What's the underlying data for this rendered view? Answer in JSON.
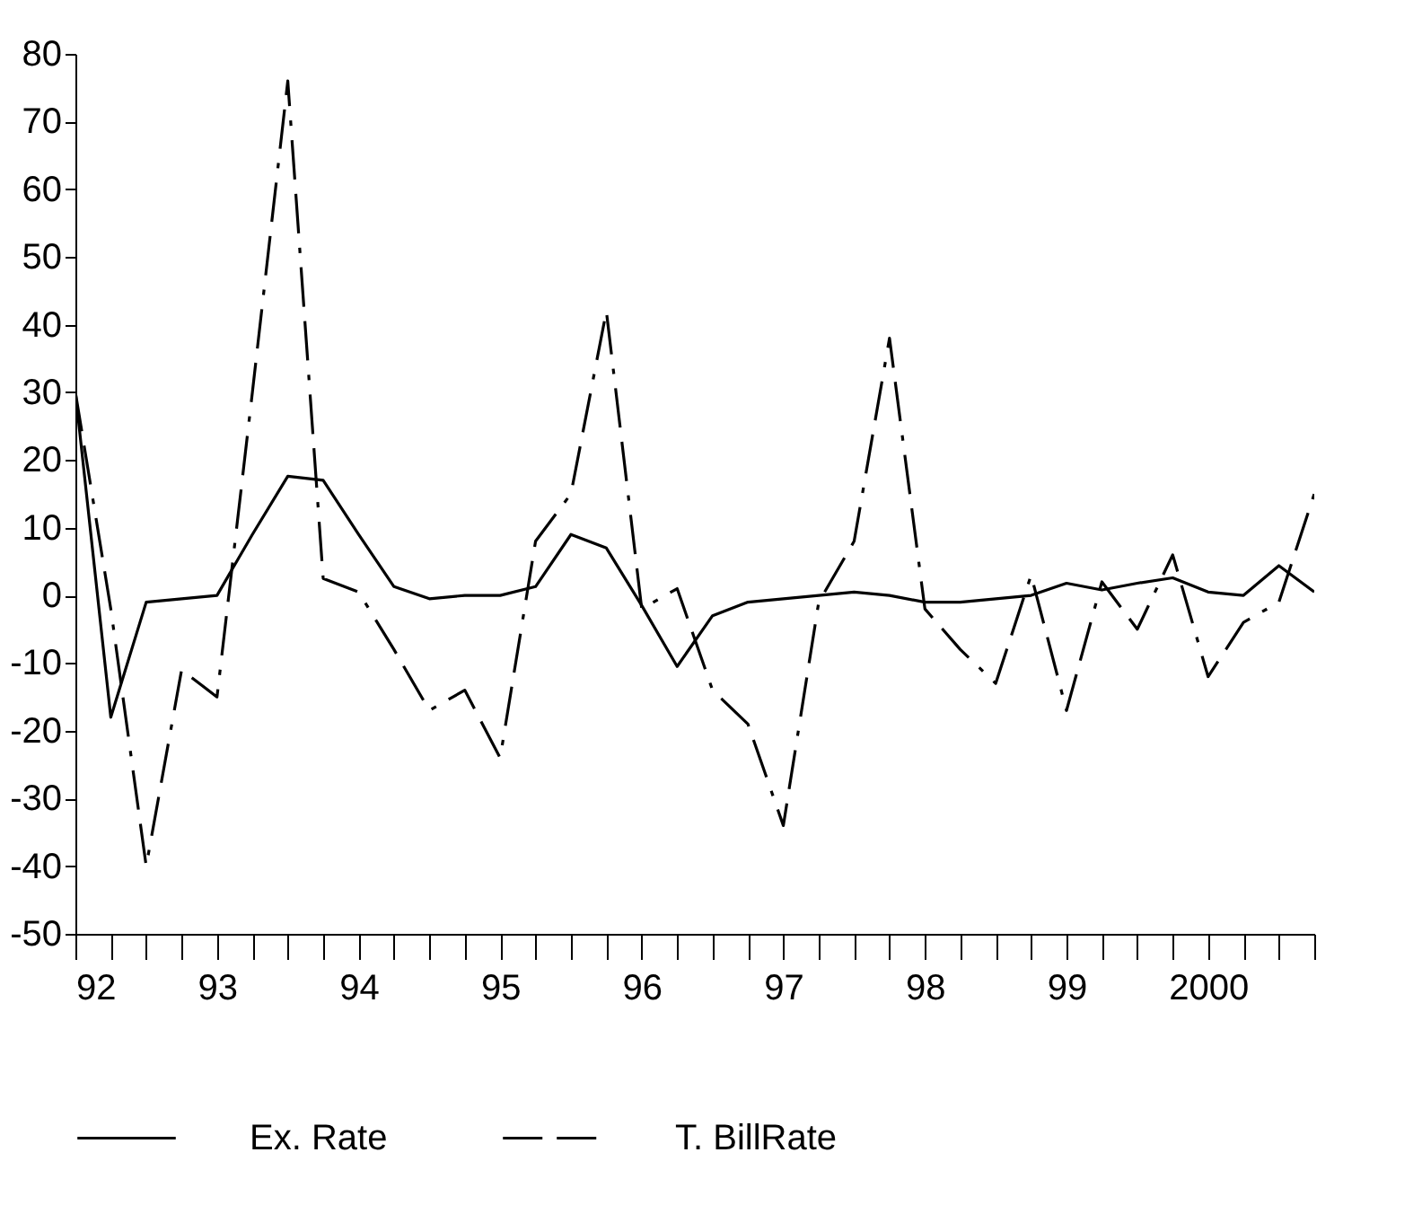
{
  "chart_data": {
    "type": "line",
    "x": [
      1992,
      1992.25,
      1992.5,
      1992.75,
      1993,
      1993.25,
      1993.5,
      1993.75,
      1994,
      1994.25,
      1994.5,
      1994.75,
      1995,
      1995.25,
      1995.5,
      1995.75,
      1996,
      1996.25,
      1996.5,
      1996.75,
      1997,
      1997.25,
      1997.5,
      1997.75,
      1998,
      1998.25,
      1998.5,
      1998.75,
      1999,
      1999.25,
      1999.5,
      1999.75,
      2000,
      2000.25,
      2000.5,
      2000.75
    ],
    "series": [
      {
        "name": "Ex. Rate",
        "color": "#000000",
        "line_style": "solid",
        "values": [
          30,
          -18,
          -1,
          -0.5,
          0,
          9,
          17.6,
          17,
          9,
          1.3,
          -0.5,
          0,
          0,
          1.3,
          9,
          7,
          -1.5,
          -10.5,
          -3,
          -1,
          -0.5,
          0,
          0.5,
          0,
          -1,
          -1,
          -0.5,
          0,
          1.8,
          0.8,
          1.8,
          2.6,
          0.5,
          0,
          4.4,
          0.5
        ]
      },
      {
        "name": "T. BillRate",
        "color": "#000000",
        "line_style": "dashed",
        "values": [
          30,
          -2,
          -40,
          -11,
          -15,
          30,
          76,
          2.5,
          0.5,
          -8,
          -17,
          -14,
          -24,
          8,
          15,
          42,
          -2,
          1,
          -14,
          -19,
          -34,
          -1,
          8,
          38,
          -2,
          -8,
          -13,
          3,
          -17,
          2,
          -5,
          6,
          -12,
          -4,
          -1,
          15
        ]
      }
    ],
    "xlim": [
      1992,
      2000.75
    ],
    "xticks": [
      {
        "value": 1992,
        "label": "92"
      },
      {
        "value": 1992.25,
        "label": null
      },
      {
        "value": 1992.5,
        "label": null
      },
      {
        "value": 1992.75,
        "label": null
      },
      {
        "value": 1993,
        "label": "93"
      },
      {
        "value": 1993.25,
        "label": null
      },
      {
        "value": 1993.5,
        "label": null
      },
      {
        "value": 1993.75,
        "label": null
      },
      {
        "value": 1994,
        "label": "94"
      },
      {
        "value": 1994.25,
        "label": null
      },
      {
        "value": 1994.5,
        "label": null
      },
      {
        "value": 1994.75,
        "label": null
      },
      {
        "value": 1995,
        "label": "95"
      },
      {
        "value": 1995.25,
        "label": null
      },
      {
        "value": 1995.5,
        "label": null
      },
      {
        "value": 1995.75,
        "label": null
      },
      {
        "value": 1996,
        "label": "96"
      },
      {
        "value": 1996.25,
        "label": null
      },
      {
        "value": 1996.5,
        "label": null
      },
      {
        "value": 1996.75,
        "label": null
      },
      {
        "value": 1997,
        "label": "97"
      },
      {
        "value": 1997.25,
        "label": null
      },
      {
        "value": 1997.5,
        "label": null
      },
      {
        "value": 1997.75,
        "label": null
      },
      {
        "value": 1998,
        "label": "98"
      },
      {
        "value": 1998.25,
        "label": null
      },
      {
        "value": 1998.5,
        "label": null
      },
      {
        "value": 1998.75,
        "label": null
      },
      {
        "value": 1999,
        "label": "99"
      },
      {
        "value": 1999.25,
        "label": null
      },
      {
        "value": 1999.5,
        "label": null
      },
      {
        "value": 1999.75,
        "label": null
      },
      {
        "value": 2000,
        "label": "2000"
      },
      {
        "value": 2000.25,
        "label": null
      },
      {
        "value": 2000.5,
        "label": null
      },
      {
        "value": 2000.75,
        "label": null
      }
    ],
    "ylim": [
      -50,
      80
    ],
    "yticks": [
      -50,
      -40,
      -30,
      -20,
      -10,
      0,
      10,
      20,
      30,
      40,
      50,
      60,
      70,
      80
    ],
    "grid": false,
    "legend": "bottom"
  }
}
